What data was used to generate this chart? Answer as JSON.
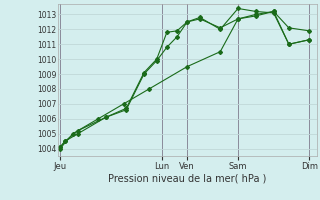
{
  "title": "",
  "xlabel": "Pression niveau de la mer( hPa )",
  "background_color": "#d4eeee",
  "grid_color": "#c0d8d8",
  "line_color": "#1a6b1a",
  "ylim": [
    1003.5,
    1013.7
  ],
  "xlim": [
    -1,
    101
  ],
  "yticks": [
    1004,
    1005,
    1006,
    1007,
    1008,
    1009,
    1010,
    1011,
    1012,
    1013
  ],
  "day_labels": [
    "Jeu",
    "Lun",
    "Ven",
    "Sam",
    "Dim"
  ],
  "day_positions": [
    0,
    40,
    50,
    70,
    98
  ],
  "vline_positions": [
    0,
    40,
    50,
    70,
    98
  ],
  "series1": {
    "x": [
      0,
      2,
      7,
      18,
      26,
      33,
      38,
      42,
      46,
      50,
      55,
      63,
      70,
      77,
      84,
      90,
      98
    ],
    "y": [
      1004.1,
      1004.5,
      1005.0,
      1006.1,
      1006.6,
      1009.0,
      1009.9,
      1010.8,
      1011.5,
      1012.5,
      1012.8,
      1012.0,
      1013.4,
      1013.2,
      1013.1,
      1011.0,
      1011.3
    ]
  },
  "series2": {
    "x": [
      0,
      2,
      7,
      18,
      26,
      33,
      38,
      42,
      46,
      50,
      55,
      63,
      70,
      77,
      84,
      90,
      98
    ],
    "y": [
      1004.1,
      1004.5,
      1005.2,
      1006.1,
      1006.7,
      1009.1,
      1010.0,
      1011.8,
      1011.9,
      1012.5,
      1012.7,
      1012.1,
      1012.7,
      1012.9,
      1013.2,
      1012.1,
      1011.9
    ]
  },
  "series3": {
    "x": [
      0,
      5,
      15,
      25,
      35,
      50,
      63,
      70,
      77,
      84,
      90,
      98
    ],
    "y": [
      1004.0,
      1005.0,
      1006.0,
      1007.0,
      1008.0,
      1009.5,
      1010.5,
      1012.7,
      1013.0,
      1013.2,
      1011.0,
      1011.3
    ]
  }
}
